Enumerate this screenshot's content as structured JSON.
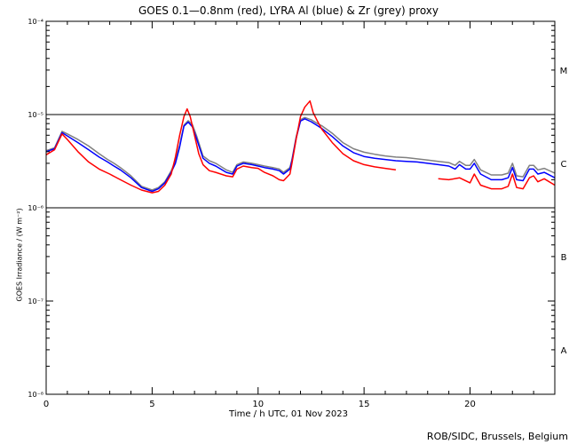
{
  "chart_data": {
    "type": "line",
    "title": "GOES 0.1—0.8nm (red), LYRA Al (blue) & Zr (grey) proxy",
    "xlabel": "Time / h UTC, 01 Nov 2023",
    "ylabel": "GOES Irradiance / (W m⁻²)",
    "credit": "ROB/SIDC, Brussels, Belgium",
    "xlim": [
      0,
      24
    ],
    "ylim": [
      1e-08,
      0.0001
    ],
    "yscale": "log",
    "x_ticks": [
      0,
      5,
      10,
      15,
      20
    ],
    "x_tick_labels": [
      "0",
      "5",
      "10",
      "15",
      "20"
    ],
    "y_ticks": [
      1e-08,
      1e-07,
      1e-06,
      1e-05,
      0.0001
    ],
    "y_tick_labels": [
      "10⁻⁸",
      "10⁻⁷",
      "10⁻⁶",
      "10⁻⁵",
      "10⁻⁴"
    ],
    "class_lines": [
      1e-06,
      1e-05
    ],
    "class_labels": [
      {
        "label": "A",
        "y": 3e-08
      },
      {
        "label": "B",
        "y": 3e-07
      },
      {
        "label": "C",
        "y": 3e-06
      },
      {
        "label": "M",
        "y": 3e-05
      }
    ],
    "series": [
      {
        "color": "#ff0000",
        "x": [
          0,
          0.4,
          0.75,
          1.0,
          1.5,
          2.0,
          2.5,
          3.0,
          3.5,
          4.0,
          4.5,
          5.0,
          5.3,
          5.6,
          5.9,
          6.1,
          6.3,
          6.5,
          6.65,
          6.8,
          7.0,
          7.2,
          7.4,
          7.7,
          8.0,
          8.5,
          8.8,
          9.0,
          9.3,
          9.7,
          10.0,
          10.3,
          10.7,
          11.0,
          11.2,
          11.5,
          11.6,
          11.8,
          12.0,
          12.2,
          12.45,
          12.6,
          12.8,
          13.0,
          13.5,
          14.0,
          14.5,
          15.0,
          15.5,
          16.0,
          16.5
        ],
        "y": [
          3.7e-06,
          4.2e-06,
          6.2e-06,
          5.4e-06,
          4e-06,
          3.1e-06,
          2.6e-06,
          2.3e-06,
          2e-06,
          1.75e-06,
          1.55e-06,
          1.45e-06,
          1.5e-06,
          1.75e-06,
          2.3e-06,
          3.5e-06,
          6e-06,
          9.5e-06,
          1.15e-05,
          9.5e-06,
          6e-06,
          3.8e-06,
          2.9e-06,
          2.5e-06,
          2.4e-06,
          2.2e-06,
          2.15e-06,
          2.6e-06,
          2.8e-06,
          2.7e-06,
          2.65e-06,
          2.4e-06,
          2.2e-06,
          2e-06,
          1.95e-06,
          2.3e-06,
          3e-06,
          5.5e-06,
          9.5e-06,
          1.2e-05,
          1.4e-05,
          1.05e-05,
          8.5e-06,
          7e-06,
          5e-06,
          3.8e-06,
          3.2e-06,
          2.9e-06,
          2.75e-06,
          2.65e-06,
          2.55e-06
        ]
      },
      {
        "color": "#ff0000",
        "x": [
          18.5,
          19.0,
          19.5,
          20.0,
          20.2,
          20.5,
          21.0,
          21.5,
          21.8,
          22.0,
          22.2,
          22.5,
          22.8,
          23.0,
          23.2,
          23.5,
          24.0
        ],
        "y": [
          2.05e-06,
          2e-06,
          2.1e-06,
          1.85e-06,
          2.3e-06,
          1.75e-06,
          1.6e-06,
          1.6e-06,
          1.7e-06,
          2.3e-06,
          1.65e-06,
          1.6e-06,
          2.1e-06,
          2.2e-06,
          1.9e-06,
          2.05e-06,
          1.75e-06
        ]
      },
      {
        "color": "#0000ff",
        "x": [
          0,
          0.4,
          0.75,
          1.0,
          1.5,
          2.0,
          2.5,
          2.9,
          3.2,
          3.5,
          4.0,
          4.5,
          5.0,
          5.3,
          5.6,
          5.9,
          6.1,
          6.3,
          6.5,
          6.7,
          6.9,
          7.1,
          7.4,
          7.7,
          8.0,
          8.5,
          8.8,
          9.0,
          9.3,
          9.7,
          10.0,
          10.3,
          10.7,
          11.0,
          11.2,
          11.5,
          11.6,
          11.8,
          12.0,
          12.2,
          12.5,
          12.8,
          13.0,
          13.5,
          14.0,
          14.5,
          15.0,
          15.5,
          16.0,
          16.5,
          17.0,
          17.5,
          18.0,
          18.5,
          19.0,
          19.3,
          19.5,
          19.8,
          20.0,
          20.2,
          20.5,
          21.0,
          21.5,
          21.8,
          22.0,
          22.2,
          22.5,
          22.8,
          23.0,
          23.2,
          23.5,
          24.0
        ],
        "y": [
          4e-06,
          4.3e-06,
          6.4e-06,
          5.9e-06,
          5e-06,
          4.2e-06,
          3.5e-06,
          3.1e-06,
          2.8e-06,
          2.55e-06,
          2.1e-06,
          1.65e-06,
          1.5e-06,
          1.6e-06,
          1.85e-06,
          2.4e-06,
          3e-06,
          4.5e-06,
          7.5e-06,
          8.3e-06,
          7.4e-06,
          5.5e-06,
          3.4e-06,
          3e-06,
          2.8e-06,
          2.4e-06,
          2.3e-06,
          2.8e-06,
          3e-06,
          2.9e-06,
          2.8e-06,
          2.7e-06,
          2.6e-06,
          2.5e-06,
          2.3e-06,
          2.6e-06,
          3.2e-06,
          5.6e-06,
          8.5e-06,
          9e-06,
          8.4e-06,
          7.6e-06,
          7.1e-06,
          5.8e-06,
          4.6e-06,
          3.9e-06,
          3.55e-06,
          3.4e-06,
          3.3e-06,
          3.2e-06,
          3.15e-06,
          3.1e-06,
          3e-06,
          2.9e-06,
          2.8e-06,
          2.6e-06,
          2.9e-06,
          2.6e-06,
          2.6e-06,
          3e-06,
          2.3e-06,
          2e-06,
          2e-06,
          2.1e-06,
          2.7e-06,
          2e-06,
          1.95e-06,
          2.6e-06,
          2.6e-06,
          2.3e-06,
          2.4e-06,
          2.1e-06
        ]
      },
      {
        "color": "#808080",
        "x": [
          0,
          0.4,
          0.75,
          1.0,
          1.5,
          2.0,
          2.5,
          2.9,
          3.2,
          3.5,
          4.0,
          4.5,
          5.0,
          5.3,
          5.6,
          5.9,
          6.1,
          6.3,
          6.5,
          6.7,
          6.9,
          7.1,
          7.4,
          7.7,
          8.0,
          8.5,
          8.8,
          9.0,
          9.3,
          9.7,
          10.0,
          10.3,
          10.7,
          11.0,
          11.2,
          11.5,
          11.6,
          11.8,
          12.0,
          12.2,
          12.5,
          12.8,
          13.0,
          13.5,
          14.0,
          14.5,
          15.0,
          15.5,
          16.0,
          16.5,
          17.0,
          17.5,
          18.0,
          18.5,
          19.0,
          19.3,
          19.5,
          19.8,
          20.0,
          20.2,
          20.5,
          21.0,
          21.5,
          21.8,
          22.0,
          22.2,
          22.5,
          22.8,
          23.0,
          23.2,
          23.5,
          24.0
        ],
        "y": [
          4.1e-06,
          4.4e-06,
          6.6e-06,
          6.2e-06,
          5.4e-06,
          4.6e-06,
          3.8e-06,
          3.3e-06,
          3e-06,
          2.7e-06,
          2.2e-06,
          1.7e-06,
          1.55e-06,
          1.65e-06,
          1.9e-06,
          2.5e-06,
          3.2e-06,
          4.7e-06,
          7.7e-06,
          8.6e-06,
          7.8e-06,
          5.9e-06,
          3.6e-06,
          3.2e-06,
          3e-06,
          2.55e-06,
          2.4e-06,
          2.9e-06,
          3.1e-06,
          3e-06,
          2.9e-06,
          2.8e-06,
          2.7e-06,
          2.6e-06,
          2.4e-06,
          2.7e-06,
          3.3e-06,
          5.8e-06,
          8.8e-06,
          9.3e-06,
          8.8e-06,
          8e-06,
          7.6e-06,
          6.3e-06,
          5e-06,
          4.3e-06,
          3.95e-06,
          3.75e-06,
          3.6e-06,
          3.5e-06,
          3.45e-06,
          3.35e-06,
          3.25e-06,
          3.15e-06,
          3.05e-06,
          2.85e-06,
          3.15e-06,
          2.85e-06,
          2.85e-06,
          3.3e-06,
          2.55e-06,
          2.25e-06,
          2.25e-06,
          2.35e-06,
          3e-06,
          2.2e-06,
          2.15e-06,
          2.85e-06,
          2.85e-06,
          2.55e-06,
          2.65e-06,
          2.35e-06
        ]
      }
    ],
    "grid": false,
    "legend": "none"
  }
}
